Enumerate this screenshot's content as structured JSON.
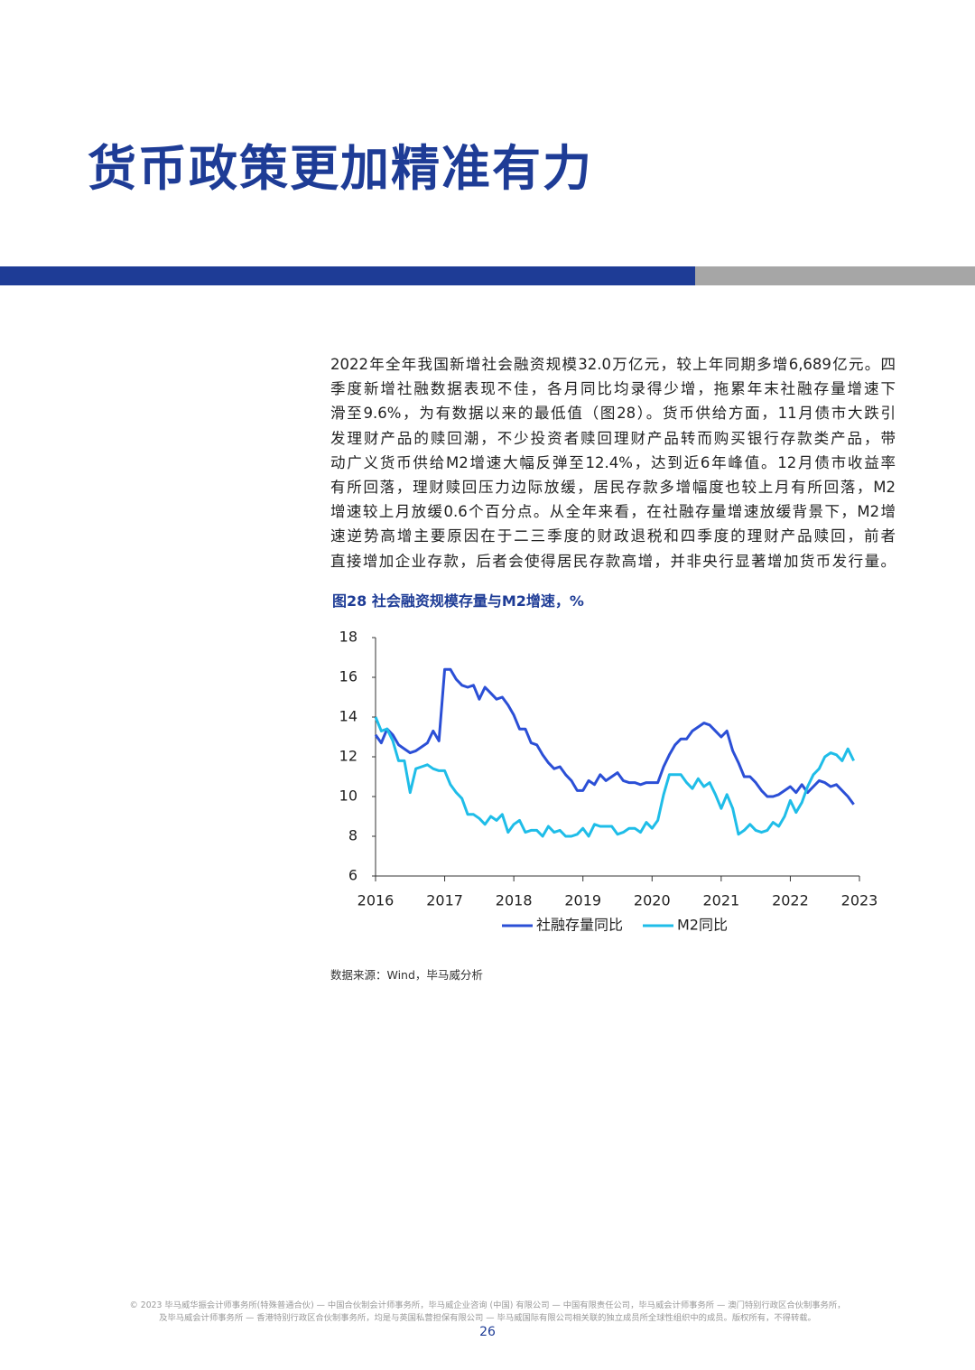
{
  "header": {
    "title": "货币政策更加精准有力"
  },
  "body": {
    "lines": [
      "2022年全年我国新增社会融资规模32.0万亿元，较上年同期多增6,689亿元。四",
      "季度新增社融数据表现不佳，各月同比均录得少增，拖累年末社融存量增速下",
      "滑至9.6%，为有数据以来的最低值（图28）。货币供给方面，11月债市大跌引",
      "发理财产品的赎回潮，不少投资者赎回理财产品转而购买银行存款类产品，带",
      "动广义货币供给M2增速大幅反弹至12.4%，达到近6年峰值。12月债市收益率",
      "有所回落，理财赎回压力边际放缓，居民存款多增幅度也较上月有所回落，M2",
      "增速较上月放缓0.6个百分点。从全年来看，在社融存量增速放缓背景下，M2增",
      "速逆势高增主要原因在于二三季度的财政退税和四季度的理财产品赎回，前者",
      "直接增加企业存款，后者会使得居民存款高增，并非央行显著增加货币发行量。"
    ]
  },
  "chart_data": {
    "type": "line",
    "title": "图28 社会融资规模存量与M2增速，%",
    "x": [
      2016,
      2016.083,
      2016.167,
      2016.25,
      2016.333,
      2016.417,
      2016.5,
      2016.583,
      2016.667,
      2016.75,
      2016.833,
      2016.917,
      2017,
      2017.083,
      2017.167,
      2017.25,
      2017.333,
      2017.417,
      2017.5,
      2017.583,
      2017.667,
      2017.75,
      2017.833,
      2017.917,
      2018,
      2018.083,
      2018.167,
      2018.25,
      2018.333,
      2018.417,
      2018.5,
      2018.583,
      2018.667,
      2018.75,
      2018.833,
      2018.917,
      2019,
      2019.083,
      2019.167,
      2019.25,
      2019.333,
      2019.417,
      2019.5,
      2019.583,
      2019.667,
      2019.75,
      2019.833,
      2019.917,
      2020,
      2020.083,
      2020.167,
      2020.25,
      2020.333,
      2020.417,
      2020.5,
      2020.583,
      2020.667,
      2020.75,
      2020.833,
      2020.917,
      2021,
      2021.083,
      2021.167,
      2021.25,
      2021.333,
      2021.417,
      2021.5,
      2021.583,
      2021.667,
      2021.75,
      2021.833,
      2021.917,
      2022,
      2022.083,
      2022.167,
      2022.25,
      2022.333,
      2022.417,
      2022.5,
      2022.583,
      2022.667,
      2022.75,
      2022.833,
      2022.917
    ],
    "series": [
      {
        "name": "社融存量同比",
        "color": "#2b4fd6",
        "values": [
          13.1,
          12.7,
          13.4,
          13.1,
          12.6,
          12.4,
          12.2,
          12.3,
          12.5,
          12.7,
          13.3,
          12.8,
          16.4,
          16.4,
          15.9,
          15.6,
          15.5,
          15.6,
          14.9,
          15.5,
          15.2,
          14.9,
          15.0,
          14.6,
          14.1,
          13.4,
          13.4,
          12.7,
          12.6,
          12.1,
          11.7,
          11.4,
          11.5,
          11.1,
          10.8,
          10.3,
          10.3,
          10.8,
          10.6,
          11.1,
          10.8,
          11.0,
          11.2,
          10.8,
          10.7,
          10.7,
          10.6,
          10.7,
          10.7,
          10.7,
          11.5,
          12.1,
          12.6,
          12.9,
          12.9,
          13.3,
          13.5,
          13.7,
          13.6,
          13.3,
          13.0,
          13.3,
          12.3,
          11.7,
          11.0,
          11.0,
          10.7,
          10.3,
          10.0,
          10.0,
          10.1,
          10.3,
          10.5,
          10.2,
          10.6,
          10.2,
          10.5,
          10.8,
          10.7,
          10.5,
          10.6,
          10.3,
          10.0,
          9.6
        ]
      },
      {
        "name": "M2同比",
        "color": "#1fbde8",
        "values": [
          14.0,
          13.3,
          13.4,
          12.8,
          11.8,
          11.8,
          10.2,
          11.4,
          11.5,
          11.6,
          11.4,
          11.3,
          11.3,
          10.6,
          10.2,
          9.9,
          9.1,
          9.1,
          8.9,
          8.6,
          9.0,
          8.8,
          9.1,
          8.2,
          8.6,
          8.8,
          8.2,
          8.3,
          8.3,
          8.0,
          8.5,
          8.2,
          8.3,
          8.0,
          8.0,
          8.1,
          8.4,
          8.0,
          8.6,
          8.5,
          8.5,
          8.5,
          8.1,
          8.2,
          8.4,
          8.4,
          8.2,
          8.7,
          8.4,
          8.8,
          10.1,
          11.1,
          11.1,
          11.1,
          10.7,
          10.4,
          10.9,
          10.5,
          10.7,
          10.1,
          9.4,
          10.1,
          9.4,
          8.1,
          8.3,
          8.6,
          8.3,
          8.2,
          8.3,
          8.7,
          8.5,
          9.0,
          9.8,
          9.2,
          9.7,
          10.5,
          11.1,
          11.4,
          12.0,
          12.2,
          12.1,
          11.8,
          12.4,
          11.8
        ]
      }
    ],
    "xlim": [
      2016,
      2023
    ],
    "xticks": [
      2016,
      2017,
      2018,
      2019,
      2020,
      2021,
      2022,
      2023
    ],
    "ylim": [
      6,
      18
    ],
    "yticks": [
      6,
      8,
      10,
      12,
      14,
      16,
      18
    ]
  },
  "source": "数据来源：Wind，毕马威分析",
  "footer": {
    "lines": [
      "© 2023 毕马威华振会计师事务所(特殊普通合伙) — 中国合伙制会计师事务所，毕马威企业咨询 (中国) 有限公司 — 中国有限责任公司，毕马威会计师事务所 — 澳门特别行政区合伙制事务所，",
      "及毕马威会计师事务所 — 香港特别行政区合伙制事务所，均是与英国私营担保有限公司 — 毕马威国际有限公司相关联的独立成员所全球性组织中的成员。版权所有，不得转载。"
    ],
    "page": "26"
  }
}
